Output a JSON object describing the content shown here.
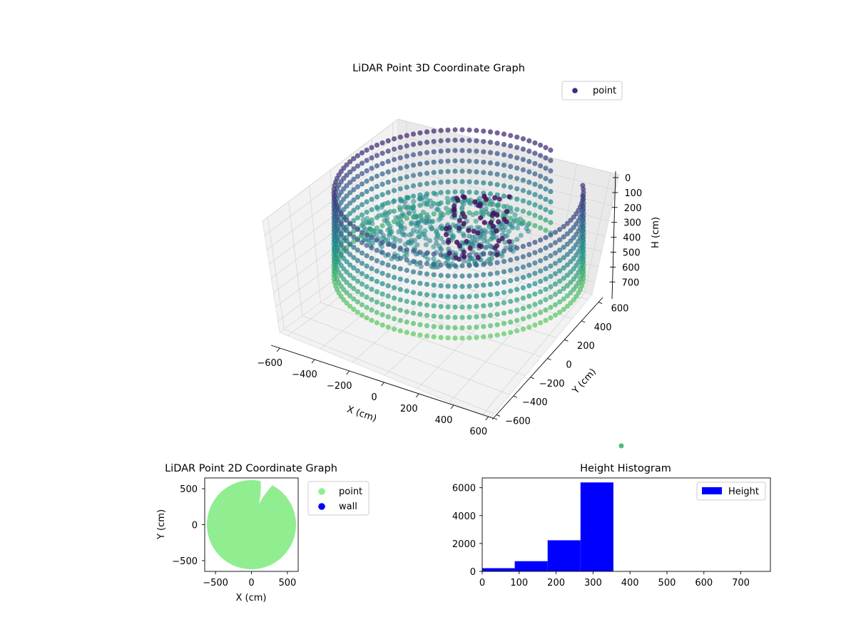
{
  "chart_data": [
    {
      "type": "scatter",
      "projection": "3d",
      "title": "LiDAR Point 3D Coordinate Graph",
      "xlabel": "X (cm)",
      "ylabel": "Y (cm)",
      "zlabel": "H (cm)",
      "x_ticks": [
        "−600",
        "−400",
        "−200",
        "0",
        "200",
        "400",
        "600"
      ],
      "y_ticks": [
        "−600",
        "−400",
        "−200",
        "0",
        "200",
        "400",
        "600"
      ],
      "z_ticks": [
        "0",
        "100",
        "200",
        "300",
        "400",
        "500",
        "600",
        "700"
      ],
      "xlim": [
        -650,
        650
      ],
      "ylim": [
        -650,
        650
      ],
      "zlim": [
        0,
        780
      ],
      "z_inverted": true,
      "grid": true,
      "legend": {
        "position": "top-right",
        "entries": [
          "point"
        ]
      },
      "colormap": [
        "#440154",
        "#3b528b",
        "#21918c",
        "#5ec962"
      ],
      "series": [
        {
          "name": "point",
          "shape": "ring of points, radius ~600 cm, heights 0–350 cm, opening near +X/+Y"
        }
      ]
    },
    {
      "type": "scatter",
      "title": "LiDAR Point 2D Coordinate Graph",
      "xlabel": "X (cm)",
      "ylabel": "Y (cm)",
      "x_ticks": [
        "−500",
        "0",
        "500"
      ],
      "y_ticks": [
        "−500",
        "0",
        "500"
      ],
      "xlim": [
        -650,
        650
      ],
      "ylim": [
        -650,
        650
      ],
      "legend": {
        "position": "outside-right",
        "entries": [
          "point",
          "wall"
        ]
      },
      "series": [
        {
          "name": "point",
          "color": "#90ee90",
          "shape": "filled disc radius ~620 cm with wedge gap near (250, 600)"
        },
        {
          "name": "wall",
          "color": "#0000ff"
        }
      ]
    },
    {
      "type": "bar",
      "title": "Height Histogram",
      "xlabel": "",
      "ylabel": "",
      "x_ticks": [
        "0",
        "100",
        "200",
        "300",
        "400",
        "500",
        "600",
        "700"
      ],
      "y_ticks": [
        "0",
        "2000",
        "4000",
        "6000"
      ],
      "xlim": [
        0,
        780
      ],
      "ylim": [
        0,
        6700
      ],
      "legend": {
        "position": "top-right",
        "entries": [
          "Height"
        ]
      },
      "bins": [
        [
          0,
          88
        ],
        [
          88,
          177
        ],
        [
          177,
          266
        ],
        [
          266,
          355
        ]
      ],
      "series": [
        {
          "name": "Height",
          "color": "#0000ff",
          "values": [
            230,
            730,
            2230,
            6380
          ]
        }
      ]
    }
  ]
}
